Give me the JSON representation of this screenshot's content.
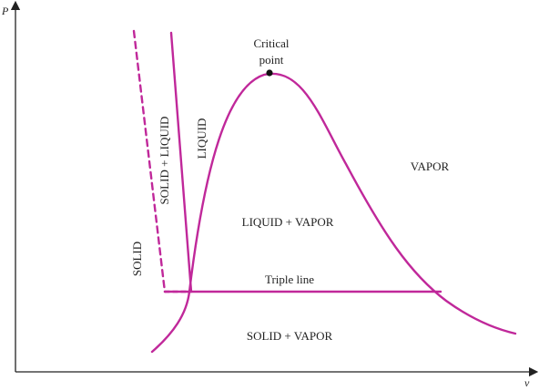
{
  "axes": {
    "y_label": "P",
    "x_label": "v"
  },
  "regions": {
    "solid": "SOLID",
    "solid_liquid": "SOLID + LIQUID",
    "liquid": "LIQUID",
    "liquid_vapor": "LIQUID + VAPOR",
    "vapor": "VAPOR",
    "solid_vapor": "SOLID + VAPOR"
  },
  "annotations": {
    "critical_point_line1": "Critical",
    "critical_point_line2": "point",
    "triple_line": "Triple line"
  },
  "colors": {
    "curve": "#c0289a",
    "axis": "#222222",
    "text": "#222222"
  }
}
